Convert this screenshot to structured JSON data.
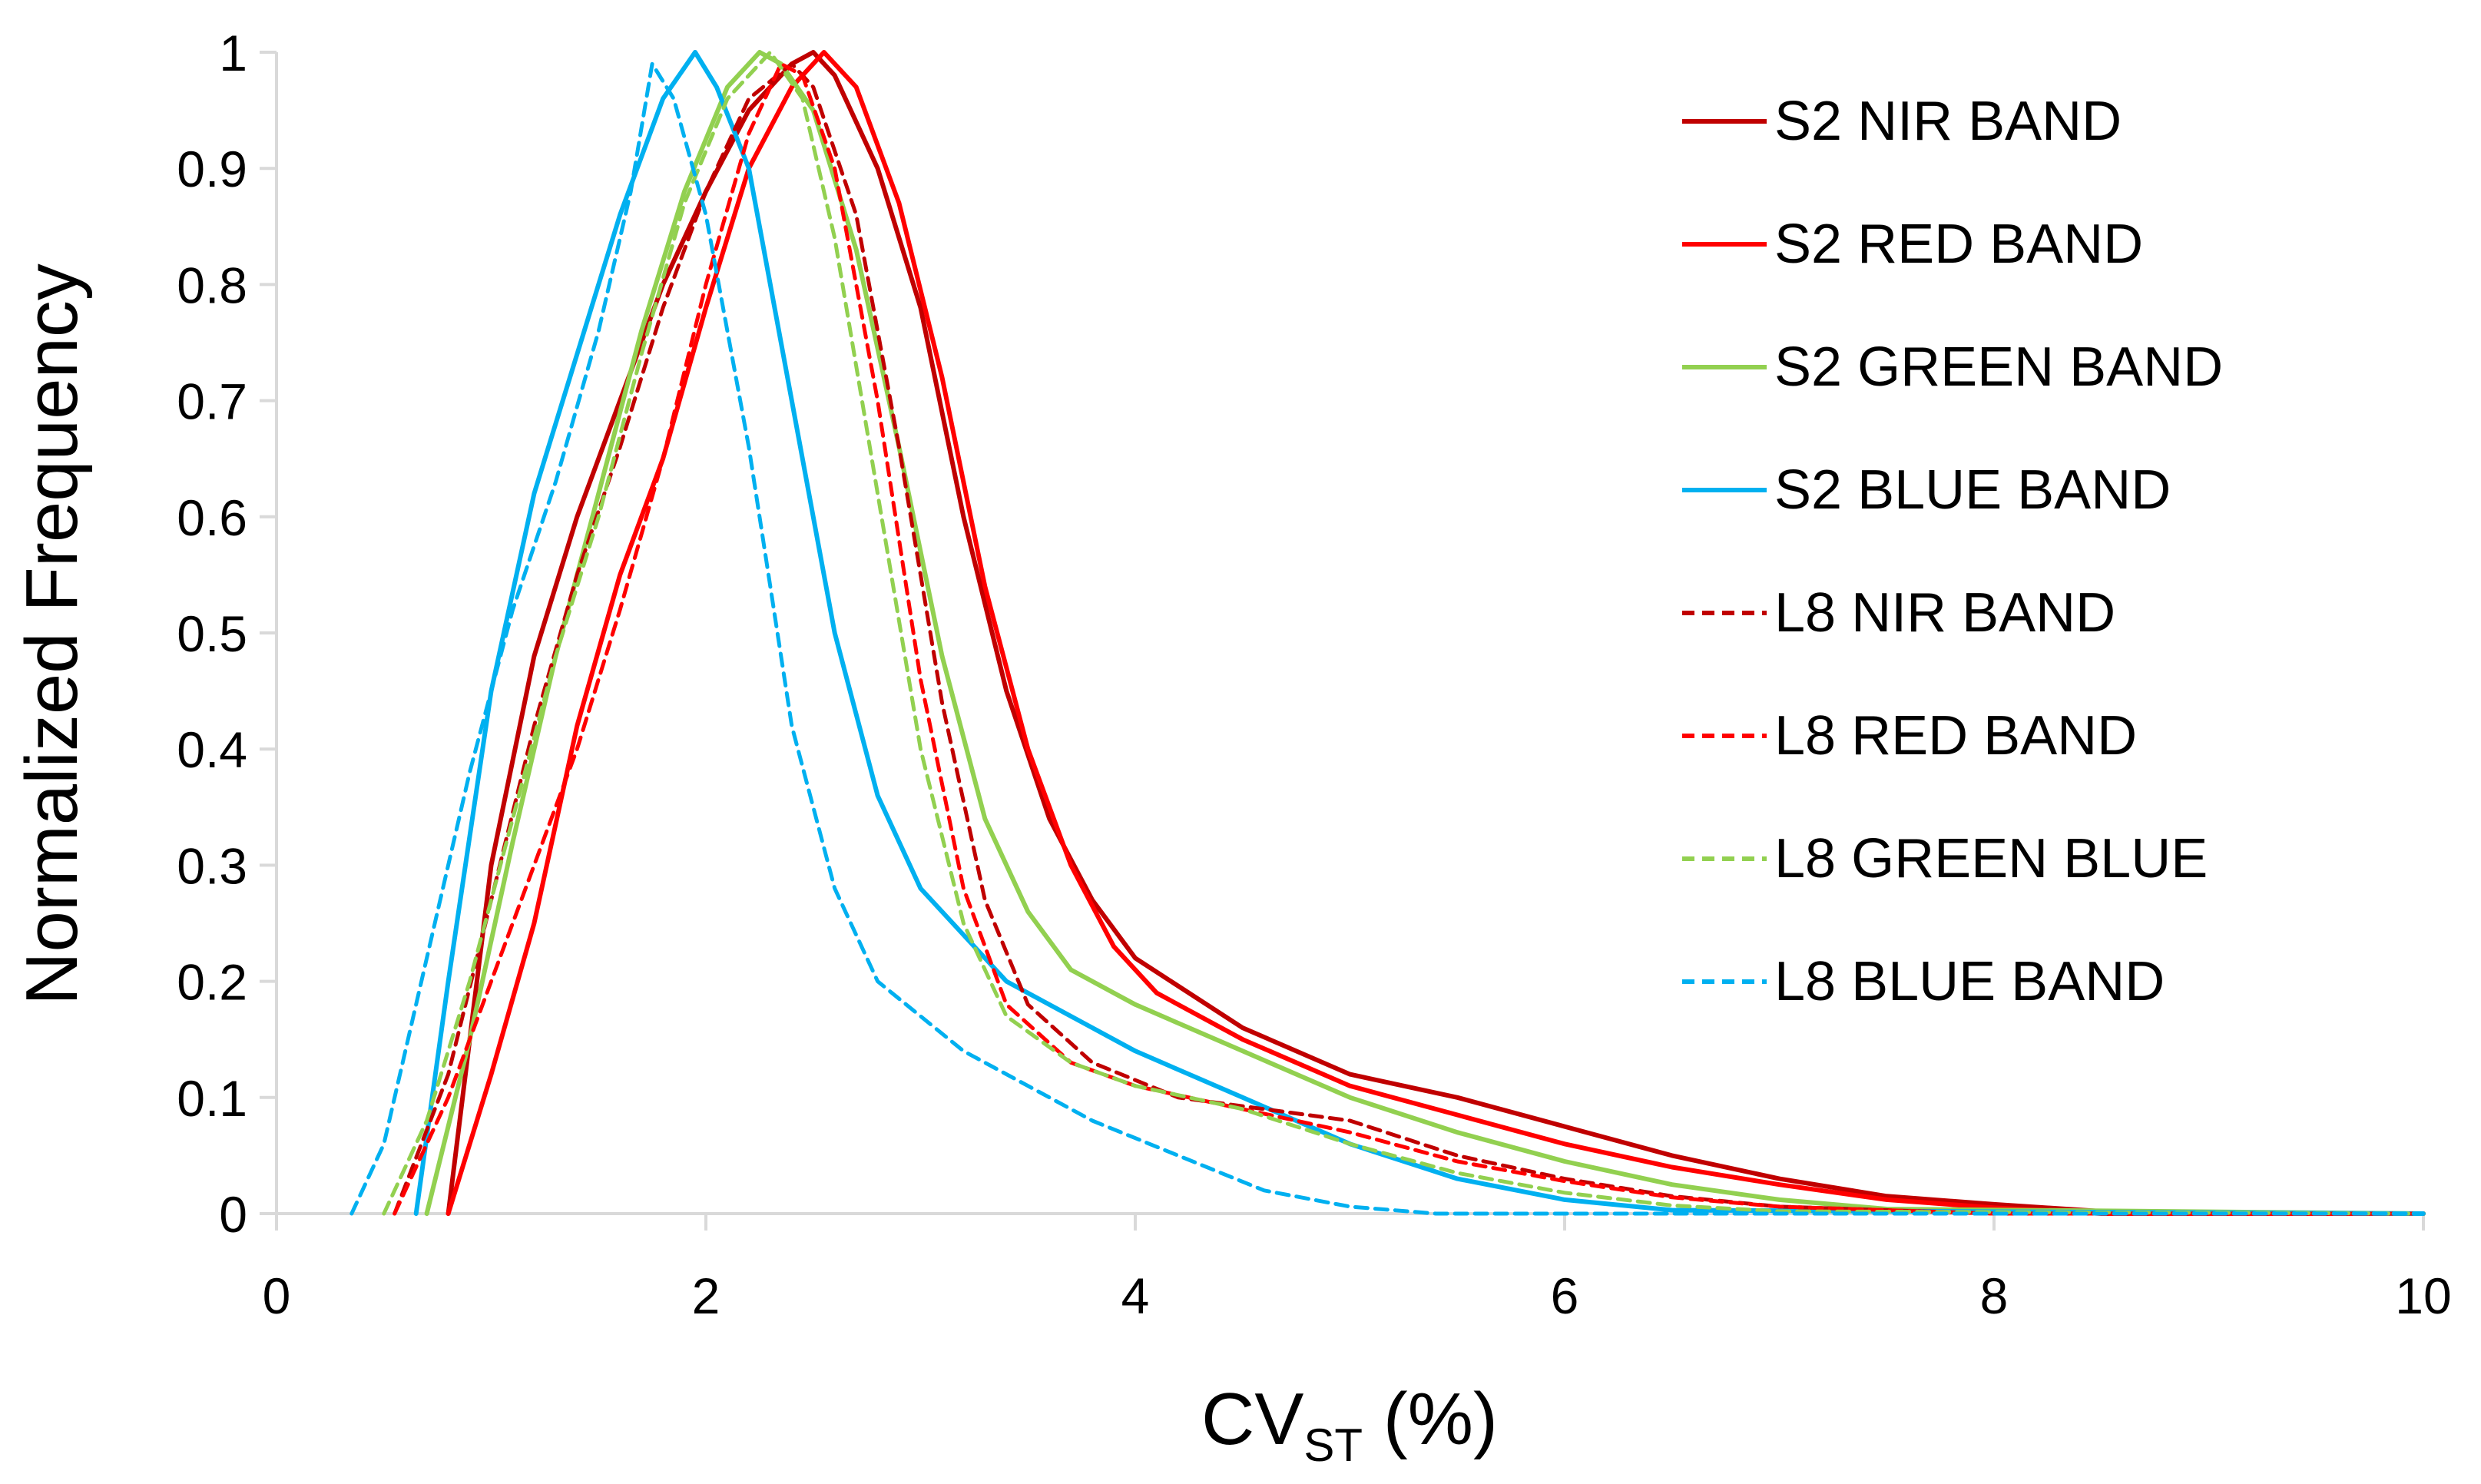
{
  "chart_data": {
    "type": "line",
    "title": "",
    "xlabel": "CV",
    "xlabel_subscript": "ST",
    "xlabel_suffix": " (%)",
    "ylabel": "Normalized Frequency",
    "xlim": [
      0,
      10
    ],
    "ylim": [
      0,
      1
    ],
    "x_ticks": [
      "0",
      "2",
      "4",
      "6",
      "8",
      "10"
    ],
    "y_ticks": [
      "0",
      "0.1",
      "0.2",
      "0.3",
      "0.4",
      "0.5",
      "0.6",
      "0.7",
      "0.8",
      "0.9",
      "1"
    ],
    "grid": false,
    "legend_position": "right",
    "series": [
      {
        "name": "S2 NIR BAND",
        "color": "#c00000",
        "dashed": false,
        "x": [
          0.8,
          1.0,
          1.2,
          1.4,
          1.6,
          1.8,
          2.0,
          2.2,
          2.4,
          2.5,
          2.6,
          2.8,
          3.0,
          3.2,
          3.4,
          3.6,
          3.8,
          4.0,
          4.5,
          5.0,
          5.5,
          6.0,
          6.5,
          7.0,
          7.5,
          8.0,
          8.5,
          9.0,
          10.0
        ],
        "y": [
          0.0,
          0.3,
          0.48,
          0.6,
          0.7,
          0.8,
          0.88,
          0.95,
          0.99,
          1.0,
          0.98,
          0.9,
          0.78,
          0.6,
          0.45,
          0.34,
          0.27,
          0.22,
          0.16,
          0.12,
          0.1,
          0.075,
          0.05,
          0.03,
          0.015,
          0.008,
          0.002,
          0.0,
          0.0
        ]
      },
      {
        "name": "S2 RED BAND",
        "color": "#ff0000",
        "dashed": false,
        "x": [
          0.8,
          1.0,
          1.2,
          1.4,
          1.6,
          1.8,
          2.0,
          2.2,
          2.4,
          2.55,
          2.7,
          2.9,
          3.1,
          3.3,
          3.5,
          3.7,
          3.9,
          4.1,
          4.5,
          5.0,
          5.5,
          6.0,
          6.5,
          7.0,
          7.5,
          8.0,
          8.5,
          10.0
        ],
        "y": [
          0.0,
          0.12,
          0.25,
          0.42,
          0.55,
          0.65,
          0.78,
          0.9,
          0.97,
          1.0,
          0.97,
          0.87,
          0.72,
          0.54,
          0.4,
          0.3,
          0.23,
          0.19,
          0.15,
          0.11,
          0.085,
          0.06,
          0.04,
          0.025,
          0.012,
          0.005,
          0.0,
          0.0
        ]
      },
      {
        "name": "S2 GREEN BAND",
        "color": "#92d050",
        "dashed": false,
        "x": [
          0.7,
          0.9,
          1.1,
          1.3,
          1.5,
          1.7,
          1.9,
          2.1,
          2.25,
          2.35,
          2.5,
          2.7,
          2.9,
          3.1,
          3.3,
          3.5,
          3.7,
          4.0,
          4.5,
          5.0,
          5.5,
          6.0,
          6.5,
          7.0,
          7.5,
          10.0
        ],
        "y": [
          0.0,
          0.15,
          0.32,
          0.48,
          0.62,
          0.76,
          0.88,
          0.97,
          1.0,
          0.99,
          0.95,
          0.83,
          0.66,
          0.48,
          0.34,
          0.26,
          0.21,
          0.18,
          0.14,
          0.1,
          0.07,
          0.045,
          0.025,
          0.012,
          0.004,
          0.0
        ]
      },
      {
        "name": "S2 BLUE BAND",
        "color": "#00b0f0",
        "dashed": false,
        "x": [
          0.65,
          0.8,
          1.0,
          1.2,
          1.4,
          1.6,
          1.8,
          1.95,
          2.05,
          2.2,
          2.4,
          2.6,
          2.8,
          3.0,
          3.2,
          3.4,
          3.7,
          4.0,
          4.5,
          5.0,
          5.5,
          6.0,
          6.5,
          10.0
        ],
        "y": [
          0.0,
          0.2,
          0.45,
          0.62,
          0.74,
          0.86,
          0.96,
          1.0,
          0.97,
          0.9,
          0.7,
          0.5,
          0.36,
          0.28,
          0.24,
          0.2,
          0.17,
          0.14,
          0.1,
          0.06,
          0.03,
          0.012,
          0.003,
          0.0
        ]
      },
      {
        "name": "L8 NIR BAND",
        "color": "#c00000",
        "dashed": true,
        "x": [
          0.55,
          0.8,
          1.0,
          1.2,
          1.4,
          1.6,
          1.8,
          2.0,
          2.2,
          2.4,
          2.5,
          2.7,
          2.9,
          3.1,
          3.3,
          3.5,
          3.8,
          4.2,
          4.6,
          5.0,
          5.5,
          6.0,
          6.5,
          7.0,
          8.0,
          10.0
        ],
        "y": [
          0.0,
          0.12,
          0.27,
          0.42,
          0.55,
          0.66,
          0.78,
          0.88,
          0.96,
          0.99,
          0.97,
          0.86,
          0.66,
          0.44,
          0.27,
          0.18,
          0.13,
          0.1,
          0.09,
          0.08,
          0.05,
          0.03,
          0.015,
          0.006,
          0.0,
          0.0
        ]
      },
      {
        "name": "L8 RED BAND",
        "color": "#ff0000",
        "dashed": true,
        "x": [
          0.55,
          0.8,
          1.0,
          1.2,
          1.4,
          1.6,
          1.8,
          2.0,
          2.2,
          2.35,
          2.45,
          2.6,
          2.8,
          3.0,
          3.2,
          3.4,
          3.7,
          4.0,
          4.5,
          5.0,
          5.5,
          6.0,
          6.5,
          7.0,
          8.0,
          10.0
        ],
        "y": [
          0.0,
          0.1,
          0.2,
          0.3,
          0.4,
          0.52,
          0.65,
          0.8,
          0.93,
          0.99,
          0.98,
          0.9,
          0.7,
          0.46,
          0.28,
          0.18,
          0.13,
          0.11,
          0.09,
          0.07,
          0.045,
          0.028,
          0.014,
          0.006,
          0.0,
          0.0
        ]
      },
      {
        "name": "L8 GREEN BLUE",
        "color": "#92d050",
        "dashed": true,
        "x": [
          0.5,
          0.7,
          0.9,
          1.1,
          1.3,
          1.5,
          1.7,
          1.9,
          2.1,
          2.3,
          2.45,
          2.6,
          2.8,
          3.0,
          3.2,
          3.4,
          3.7,
          4.0,
          4.5,
          5.0,
          5.5,
          6.0,
          6.5,
          7.0,
          10.0
        ],
        "y": [
          0.0,
          0.08,
          0.2,
          0.34,
          0.48,
          0.6,
          0.74,
          0.87,
          0.96,
          1.0,
          0.96,
          0.84,
          0.62,
          0.4,
          0.25,
          0.17,
          0.13,
          0.11,
          0.09,
          0.06,
          0.035,
          0.018,
          0.007,
          0.002,
          0.0
        ]
      },
      {
        "name": "L8 BLUE BAND",
        "color": "#00b0f0",
        "dashed": true,
        "x": [
          0.35,
          0.5,
          0.7,
          0.9,
          1.1,
          1.3,
          1.5,
          1.65,
          1.75,
          1.85,
          2.0,
          2.2,
          2.4,
          2.6,
          2.8,
          3.0,
          3.2,
          3.5,
          3.8,
          4.2,
          4.6,
          5.0,
          5.4,
          10.0
        ],
        "y": [
          0.0,
          0.06,
          0.22,
          0.38,
          0.52,
          0.63,
          0.76,
          0.88,
          0.99,
          0.96,
          0.86,
          0.66,
          0.42,
          0.28,
          0.2,
          0.17,
          0.14,
          0.11,
          0.08,
          0.05,
          0.02,
          0.006,
          0.0,
          0.0
        ]
      }
    ]
  }
}
